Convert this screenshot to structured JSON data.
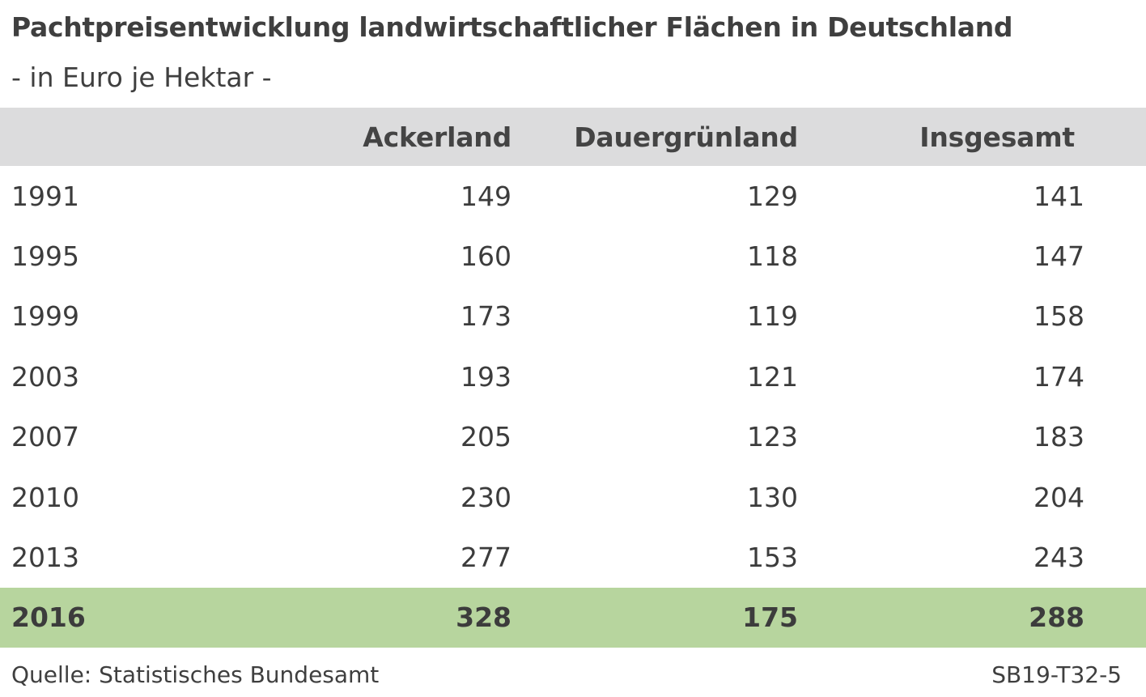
{
  "title": "Pachtpreisentwicklung landwirtschaftlicher Flächen in Deutschland",
  "subtitle": "- in Euro je Hektar -",
  "source": "Quelle: Statistisches Bundesamt",
  "code": "SB19-T32-5",
  "colors": {
    "header_background": "#dcdcdd",
    "highlight_background": "#b7d59e",
    "text": "#3c3c3c"
  },
  "chart_data": {
    "type": "table",
    "title": "Pachtpreisentwicklung landwirtschaftlicher Flächen in Deutschland",
    "subtitle": "- in Euro je Hektar -",
    "columns": [
      "",
      "Ackerland",
      "Dauergrünland",
      "Insgesamt"
    ],
    "rows": [
      {
        "year": "1991",
        "ackerland": "149",
        "dauergruenland": "129",
        "insgesamt": "141"
      },
      {
        "year": "1995",
        "ackerland": "160",
        "dauergruenland": "118",
        "insgesamt": "147"
      },
      {
        "year": "1999",
        "ackerland": "173",
        "dauergruenland": "119",
        "insgesamt": "158"
      },
      {
        "year": "2003",
        "ackerland": "193",
        "dauergruenland": "121",
        "insgesamt": "174"
      },
      {
        "year": "2007",
        "ackerland": "205",
        "dauergruenland": "123",
        "insgesamt": "183"
      },
      {
        "year": "2010",
        "ackerland": "230",
        "dauergruenland": "130",
        "insgesamt": "204"
      },
      {
        "year": "2013",
        "ackerland": "277",
        "dauergruenland": "153",
        "insgesamt": "243"
      },
      {
        "year": "2016",
        "ackerland": "328",
        "dauergruenland": "175",
        "insgesamt": "288"
      }
    ],
    "highlighted_row": "2016"
  }
}
